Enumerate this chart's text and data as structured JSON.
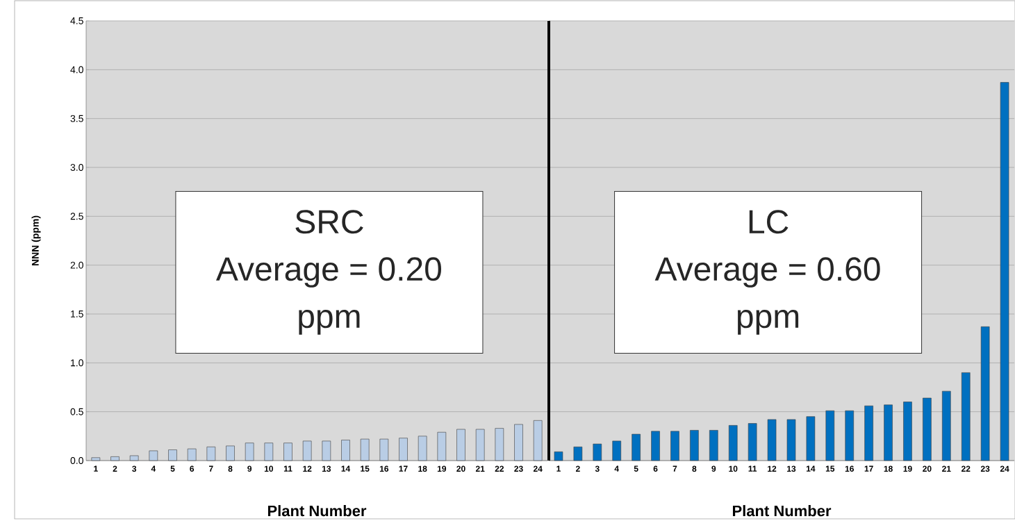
{
  "chart_data": [
    {
      "type": "bar",
      "categories": [
        "1",
        "2",
        "3",
        "4",
        "5",
        "6",
        "7",
        "8",
        "9",
        "10",
        "11",
        "12",
        "13",
        "14",
        "15",
        "16",
        "17",
        "18",
        "19",
        "20",
        "21",
        "22",
        "23",
        "24"
      ],
      "values": [
        0.03,
        0.04,
        0.05,
        0.1,
        0.11,
        0.12,
        0.14,
        0.15,
        0.18,
        0.18,
        0.18,
        0.2,
        0.2,
        0.21,
        0.22,
        0.22,
        0.23,
        0.25,
        0.29,
        0.32,
        0.32,
        0.33,
        0.37,
        0.41
      ],
      "color": "#b9cde5",
      "xlabel": "Plant Number",
      "ylabel": "NNN (ppm)",
      "ylim": [
        0,
        4.5
      ],
      "yticks": [
        {
          "value": 0,
          "label": "0.0"
        },
        {
          "value": 0.5,
          "label": "0.5"
        },
        {
          "value": 1,
          "label": "1.0"
        },
        {
          "value": 1.5,
          "label": "1.5"
        },
        {
          "value": 2,
          "label": "2.0"
        },
        {
          "value": 2.5,
          "label": "2.5"
        },
        {
          "value": 3,
          "label": "3.0"
        },
        {
          "value": 3.5,
          "label": "3.5"
        },
        {
          "value": 4,
          "label": "4.0"
        },
        {
          "value": 4.5,
          "label": "4.5"
        }
      ],
      "grid": "y",
      "annotations": [
        "SRC",
        "Average = 0.20",
        "ppm"
      ]
    },
    {
      "type": "bar",
      "categories": [
        "1",
        "2",
        "3",
        "4",
        "5",
        "6",
        "7",
        "8",
        "9",
        "10",
        "11",
        "12",
        "13",
        "14",
        "15",
        "16",
        "17",
        "18",
        "19",
        "20",
        "21",
        "22",
        "23",
        "24"
      ],
      "values": [
        0.09,
        0.14,
        0.17,
        0.2,
        0.27,
        0.3,
        0.3,
        0.31,
        0.31,
        0.36,
        0.38,
        0.42,
        0.42,
        0.45,
        0.51,
        0.51,
        0.56,
        0.57,
        0.6,
        0.64,
        0.71,
        0.9,
        1.37,
        3.87
      ],
      "color": "#0070c0",
      "xlabel": "Plant Number",
      "ylim": [
        0,
        4.5
      ],
      "yticks": [
        0,
        0.5,
        1,
        1.5,
        2,
        2.5,
        3,
        3.5,
        4,
        4.5
      ],
      "grid": "y",
      "tick_labels": "x",
      "annotations": [
        "LC",
        "Average = 0.60",
        "ppm"
      ]
    }
  ]
}
